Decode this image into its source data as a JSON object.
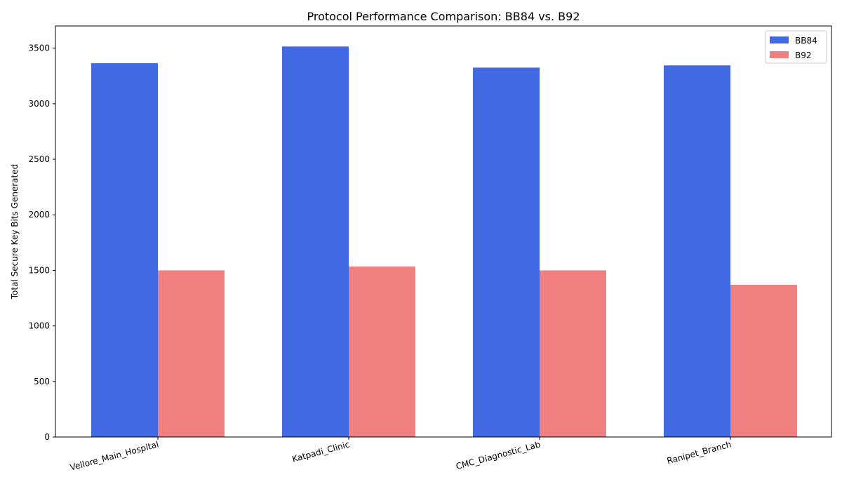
{
  "chart_data": {
    "type": "bar",
    "title": "Protocol Performance Comparison: BB84 vs. B92",
    "xlabel": "",
    "ylabel": "Total Secure Key Bits Generated",
    "categories": [
      "Vellore_Main_Hospital",
      "Katpadi_Clinic",
      "CMC_Diagnostic_Lab",
      "Ranipet_Branch"
    ],
    "series": [
      {
        "name": "BB84",
        "color": "#4169e1",
        "values": [
          3365,
          3515,
          3325,
          3345
        ]
      },
      {
        "name": "B92",
        "color": "#f08080",
        "values": [
          1500,
          1535,
          1500,
          1370
        ]
      }
    ],
    "ylim": [
      0,
      3700
    ],
    "yticks": [
      0,
      500,
      1000,
      1500,
      2000,
      2500,
      3000,
      3500
    ],
    "grid": false,
    "legend_position": "top-right"
  }
}
